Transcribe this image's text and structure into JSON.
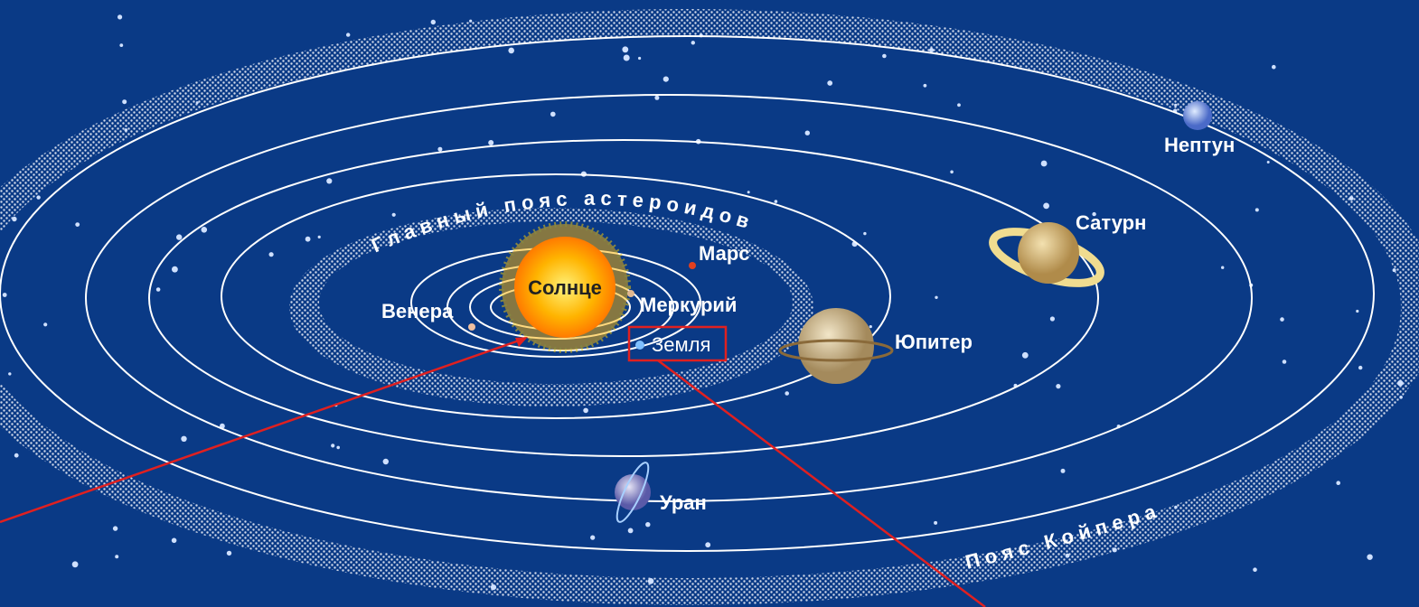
{
  "labels": {
    "sun": "Солнце",
    "mercury": "Меркурий",
    "venus": "Венера",
    "earth": "Земля",
    "mars": "Марс",
    "jupiter": "Юпитер",
    "saturn": "Сатурн",
    "uranus": "Уран",
    "neptune": "Нептун"
  },
  "belts": {
    "asteroid": "Главный пояс астероидов",
    "kuiper": "Пояс Койпера"
  }
}
